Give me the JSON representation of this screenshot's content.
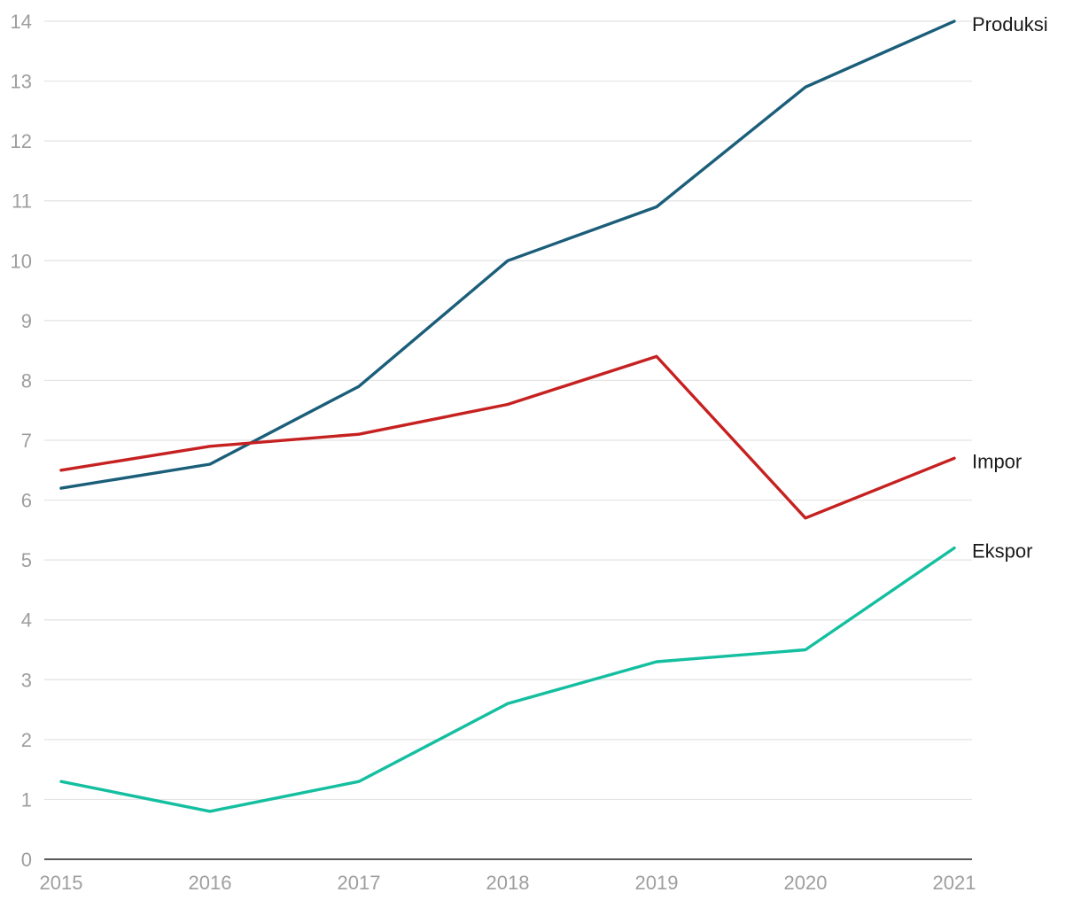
{
  "chart_data": {
    "type": "line",
    "title": "",
    "xlabel": "",
    "ylabel": "",
    "x": [
      "2015",
      "2016",
      "2017",
      "2018",
      "2019",
      "2020",
      "2021"
    ],
    "ylim": [
      0,
      14
    ],
    "yticks": [
      "0",
      "1",
      "2",
      "3",
      "4",
      "5",
      "6",
      "7",
      "8",
      "9",
      "10",
      "11",
      "12",
      "13",
      "14"
    ],
    "grid": true,
    "legend": "inline-right",
    "series": [
      {
        "name": "Produksi",
        "color": "#1b5e7a",
        "values": [
          6.2,
          6.6,
          7.9,
          10.0,
          10.9,
          12.9,
          14.0
        ]
      },
      {
        "name": "Impor",
        "color": "#c62121",
        "values": [
          6.5,
          6.9,
          7.1,
          7.6,
          8.4,
          5.7,
          6.7
        ]
      },
      {
        "name": "Ekspor",
        "color": "#14bfa0",
        "values": [
          1.3,
          0.8,
          1.3,
          2.6,
          3.3,
          3.5,
          5.2
        ]
      }
    ]
  }
}
